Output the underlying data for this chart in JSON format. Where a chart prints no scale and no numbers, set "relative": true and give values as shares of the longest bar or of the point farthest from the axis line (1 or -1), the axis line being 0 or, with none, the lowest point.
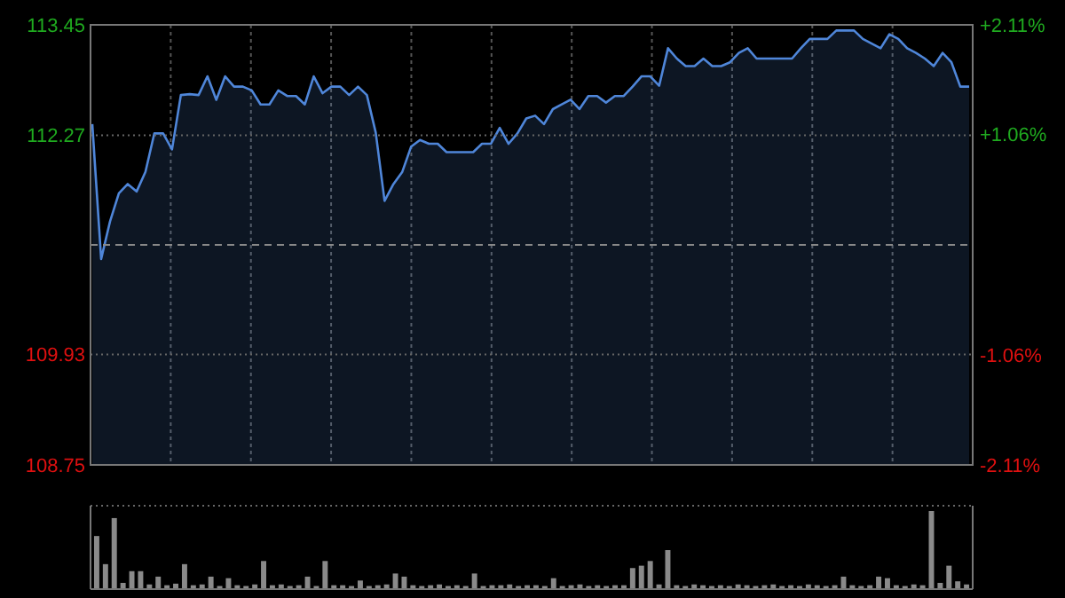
{
  "chart_data": [
    {
      "type": "area",
      "categories": [
        null,
        null,
        null,
        null,
        null,
        null,
        null,
        null,
        null,
        null,
        null,
        null,
        null,
        null,
        null,
        null,
        null,
        null,
        null,
        null,
        null,
        null,
        null,
        null,
        null,
        null,
        null,
        null,
        null,
        null,
        null,
        null,
        null,
        null,
        null,
        null,
        null,
        null,
        null,
        null,
        null,
        null,
        null,
        null,
        null,
        null,
        null,
        null,
        null,
        null,
        null,
        null,
        null,
        null,
        null,
        null,
        null,
        null,
        null,
        null,
        null,
        null,
        null,
        null,
        null,
        null,
        null,
        null,
        null,
        null,
        null,
        null,
        null,
        null,
        null,
        null,
        null,
        null,
        null,
        null,
        null,
        null,
        null,
        null,
        null,
        null,
        null,
        null,
        null,
        null,
        null,
        null,
        null,
        null,
        null,
        null,
        null,
        null,
        null,
        null
      ],
      "series": [
        {
          "color": "#4f86d9",
          "values": [
            112.39,
            110.95,
            111.35,
            111.65,
            111.75,
            111.67,
            111.88,
            112.29,
            112.29,
            112.12,
            112.7,
            112.71,
            112.7,
            112.9,
            112.65,
            112.9,
            112.79,
            112.79,
            112.75,
            112.6,
            112.6,
            112.75,
            112.69,
            112.69,
            112.6,
            112.9,
            112.72,
            112.79,
            112.79,
            112.7,
            112.79,
            112.7,
            112.3,
            111.57,
            111.75,
            111.88,
            112.15,
            112.22,
            112.18,
            112.18,
            112.09,
            112.09,
            112.09,
            112.09,
            112.18,
            112.18,
            112.35,
            112.18,
            112.29,
            112.45,
            112.48,
            112.39,
            112.55,
            112.6,
            112.65,
            112.55,
            112.69,
            112.69,
            112.62,
            112.69,
            112.69,
            112.79,
            112.9,
            112.9,
            112.8,
            113.2,
            113.09,
            113.01,
            113.01,
            113.09,
            113.01,
            113.01,
            113.05,
            113.15,
            113.2,
            113.09,
            113.09,
            113.09,
            113.09,
            113.09,
            113.2,
            113.3,
            113.3,
            113.3,
            113.39,
            113.39,
            113.39,
            113.3,
            113.25,
            113.2,
            113.35,
            113.3,
            113.2,
            113.15,
            113.09,
            113.01,
            113.15,
            113.05,
            112.79,
            112.79
          ]
        }
      ],
      "ylim": [
        108.75,
        113.45
      ],
      "yticks": [
        108.75,
        109.93,
        112.27,
        113.45
      ],
      "y2lim": [
        -2.11,
        2.11
      ],
      "y2ticks": [
        {
          "value": -2.11,
          "label": "-2.11%"
        },
        {
          "value": -1.06,
          "label": "-1.06%"
        },
        {
          "value": 1.06,
          "label": "+1.06%"
        },
        {
          "value": 2.11,
          "label": "+2.11%"
        }
      ],
      "ref_lines": [
        {
          "axis": "y",
          "value": 111.1,
          "line_style": "dashed"
        }
      ],
      "grid": true,
      "tick_labels": "y"
    },
    {
      "type": "bar",
      "relative": true,
      "color": "#8a8a8a",
      "categories": [
        null,
        null,
        null,
        null,
        null,
        null,
        null,
        null,
        null,
        null,
        null,
        null,
        null,
        null,
        null,
        null,
        null,
        null,
        null,
        null,
        null,
        null,
        null,
        null,
        null,
        null,
        null,
        null,
        null,
        null,
        null,
        null,
        null,
        null,
        null,
        null,
        null,
        null,
        null,
        null,
        null,
        null,
        null,
        null,
        null,
        null,
        null,
        null,
        null,
        null,
        null,
        null,
        null,
        null,
        null,
        null,
        null,
        null,
        null,
        null,
        null,
        null,
        null,
        null,
        null,
        null,
        null,
        null,
        null,
        null,
        null,
        null,
        null,
        null,
        null,
        null,
        null,
        null,
        null,
        null,
        null,
        null,
        null,
        null,
        null,
        null,
        null,
        null,
        null,
        null,
        null,
        null,
        null,
        null,
        null,
        null,
        null,
        null,
        null,
        null
      ],
      "values": [
        0.68,
        0.32,
        0.91,
        0.08,
        0.23,
        0.23,
        0.06,
        0.16,
        0.05,
        0.07,
        0.32,
        0.05,
        0.06,
        0.16,
        0.04,
        0.14,
        0.05,
        0.04,
        0.06,
        0.36,
        0.05,
        0.06,
        0.04,
        0.05,
        0.16,
        0.04,
        0.36,
        0.05,
        0.05,
        0.04,
        0.11,
        0.04,
        0.05,
        0.06,
        0.2,
        0.16,
        0.05,
        0.04,
        0.05,
        0.06,
        0.04,
        0.05,
        0.04,
        0.2,
        0.04,
        0.05,
        0.05,
        0.06,
        0.04,
        0.05,
        0.05,
        0.04,
        0.14,
        0.04,
        0.05,
        0.06,
        0.04,
        0.05,
        0.04,
        0.05,
        0.05,
        0.27,
        0.3,
        0.36,
        0.06,
        0.5,
        0.05,
        0.04,
        0.06,
        0.05,
        0.04,
        0.05,
        0.04,
        0.06,
        0.05,
        0.04,
        0.05,
        0.06,
        0.04,
        0.05,
        0.04,
        0.06,
        0.05,
        0.04,
        0.05,
        0.16,
        0.05,
        0.04,
        0.05,
        0.16,
        0.14,
        0.05,
        0.04,
        0.06,
        0.05,
        1,
        0.08,
        0.3,
        0.1,
        0.06
      ]
    }
  ]
}
